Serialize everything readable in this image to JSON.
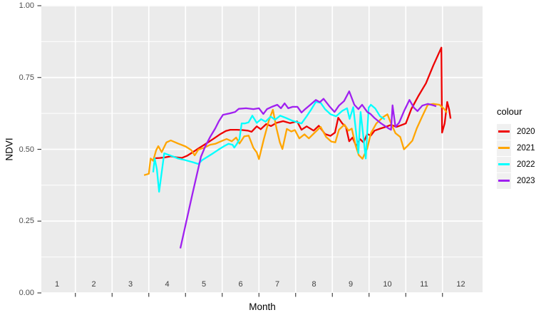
{
  "figure": {
    "panel_background": "#EBEBEB",
    "grid_color": "#FFFFFF",
    "tick_color": "#333333",
    "tick_label_color": "#4d4d4d",
    "background": "#FFFFFF"
  },
  "legend": {
    "title": "colour",
    "items": [
      {
        "label": "2020",
        "color": "#EE0000"
      },
      {
        "label": "2021",
        "color": "#FFA500"
      },
      {
        "label": "2022",
        "color": "#00FFFF"
      },
      {
        "label": "2023",
        "color": "#A020F0"
      }
    ]
  },
  "chart_data": {
    "type": "line",
    "title": "",
    "xlabel": "Month",
    "ylabel": "NDVI",
    "xlim": [
      0.57,
      12.59
    ],
    "ylim": [
      0.0,
      1.0
    ],
    "grid": "on",
    "legend_position": "right",
    "legend_title": "colour",
    "x_ticks": [
      {
        "value": 1,
        "label": "1"
      },
      {
        "value": 2,
        "label": "2"
      },
      {
        "value": 3,
        "label": "3"
      },
      {
        "value": 4,
        "label": "4"
      },
      {
        "value": 5,
        "label": "5"
      },
      {
        "value": 6,
        "label": "6"
      },
      {
        "value": 7,
        "label": "7"
      },
      {
        "value": 8,
        "label": "8"
      },
      {
        "value": 9,
        "label": "9"
      },
      {
        "value": 10,
        "label": "10"
      },
      {
        "value": 11,
        "label": "11"
      },
      {
        "value": 12,
        "label": "12"
      }
    ],
    "y_ticks": [
      {
        "value": 0.0,
        "label": "0.00"
      },
      {
        "value": 0.25,
        "label": "0.25"
      },
      {
        "value": 0.5,
        "label": "0.50"
      },
      {
        "value": 0.75,
        "label": "0.75"
      },
      {
        "value": 1.0,
        "label": "1.00"
      }
    ],
    "series": [
      {
        "name": "2020",
        "color": "#EE0000",
        "points": [
          [
            3.68,
            0.469
          ],
          [
            3.8,
            0.47
          ],
          [
            3.95,
            0.472
          ],
          [
            4.1,
            0.476
          ],
          [
            4.25,
            0.472
          ],
          [
            4.4,
            0.47
          ],
          [
            4.55,
            0.478
          ],
          [
            4.7,
            0.49
          ],
          [
            4.85,
            0.503
          ],
          [
            5.0,
            0.515
          ],
          [
            5.15,
            0.527
          ],
          [
            5.3,
            0.54
          ],
          [
            5.45,
            0.553
          ],
          [
            5.6,
            0.564
          ],
          [
            5.72,
            0.568
          ],
          [
            5.9,
            0.568
          ],
          [
            6.05,
            0.567
          ],
          [
            6.2,
            0.565
          ],
          [
            6.3,
            0.561
          ],
          [
            6.44,
            0.58
          ],
          [
            6.55,
            0.57
          ],
          [
            6.7,
            0.588
          ],
          [
            6.83,
            0.581
          ],
          [
            6.98,
            0.592
          ],
          [
            7.16,
            0.598
          ],
          [
            7.35,
            0.591
          ],
          [
            7.54,
            0.597
          ],
          [
            7.66,
            0.568
          ],
          [
            7.8,
            0.58
          ],
          [
            7.99,
            0.565
          ],
          [
            8.13,
            0.582
          ],
          [
            8.3,
            0.553
          ],
          [
            8.45,
            0.547
          ],
          [
            8.57,
            0.558
          ],
          [
            8.66,
            0.61
          ],
          [
            8.77,
            0.59
          ],
          [
            8.87,
            0.578
          ],
          [
            8.96,
            0.528
          ],
          [
            9.05,
            0.541
          ],
          [
            9.15,
            0.511
          ],
          [
            9.25,
            0.536
          ],
          [
            9.35,
            0.524
          ],
          [
            9.45,
            0.553
          ],
          [
            9.55,
            0.548
          ],
          [
            9.65,
            0.565
          ],
          [
            9.8,
            0.572
          ],
          [
            9.95,
            0.578
          ],
          [
            10.1,
            0.585
          ],
          [
            10.25,
            0.578
          ],
          [
            10.4,
            0.585
          ],
          [
            10.5,
            0.59
          ],
          [
            10.65,
            0.64
          ],
          [
            10.85,
            0.687
          ],
          [
            11.05,
            0.73
          ],
          [
            11.25,
            0.792
          ],
          [
            11.47,
            0.854
          ],
          [
            11.49,
            0.558
          ],
          [
            11.56,
            0.59
          ],
          [
            11.63,
            0.665
          ],
          [
            11.68,
            0.64
          ],
          [
            11.72,
            0.607
          ]
        ]
      },
      {
        "name": "2021",
        "color": "#FFA500",
        "points": [
          [
            3.37,
            0.41
          ],
          [
            3.5,
            0.415
          ],
          [
            3.55,
            0.468
          ],
          [
            3.62,
            0.46
          ],
          [
            3.7,
            0.497
          ],
          [
            3.76,
            0.511
          ],
          [
            3.85,
            0.49
          ],
          [
            3.98,
            0.524
          ],
          [
            4.1,
            0.531
          ],
          [
            4.3,
            0.52
          ],
          [
            4.5,
            0.51
          ],
          [
            4.66,
            0.497
          ],
          [
            4.75,
            0.479
          ],
          [
            4.85,
            0.499
          ],
          [
            5.0,
            0.505
          ],
          [
            5.17,
            0.516
          ],
          [
            5.31,
            0.519
          ],
          [
            5.47,
            0.528
          ],
          [
            5.62,
            0.536
          ],
          [
            5.76,
            0.528
          ],
          [
            5.88,
            0.541
          ],
          [
            5.97,
            0.52
          ],
          [
            6.1,
            0.545
          ],
          [
            6.22,
            0.548
          ],
          [
            6.35,
            0.505
          ],
          [
            6.44,
            0.489
          ],
          [
            6.5,
            0.466
          ],
          [
            6.63,
            0.533
          ],
          [
            6.77,
            0.6
          ],
          [
            6.88,
            0.638
          ],
          [
            6.98,
            0.572
          ],
          [
            7.07,
            0.524
          ],
          [
            7.14,
            0.501
          ],
          [
            7.26,
            0.571
          ],
          [
            7.38,
            0.562
          ],
          [
            7.48,
            0.567
          ],
          [
            7.6,
            0.538
          ],
          [
            7.74,
            0.552
          ],
          [
            7.86,
            0.538
          ],
          [
            8.05,
            0.562
          ],
          [
            8.18,
            0.578
          ],
          [
            8.33,
            0.543
          ],
          [
            8.47,
            0.527
          ],
          [
            8.58,
            0.524
          ],
          [
            8.68,
            0.568
          ],
          [
            8.83,
            0.586
          ],
          [
            8.94,
            0.565
          ],
          [
            9.03,
            0.572
          ],
          [
            9.13,
            0.515
          ],
          [
            9.22,
            0.48
          ],
          [
            9.32,
            0.467
          ],
          [
            9.45,
            0.503
          ],
          [
            9.55,
            0.556
          ],
          [
            9.7,
            0.59
          ],
          [
            9.88,
            0.612
          ],
          [
            10.0,
            0.622
          ],
          [
            10.1,
            0.59
          ],
          [
            10.22,
            0.556
          ],
          [
            10.35,
            0.543
          ],
          [
            10.45,
            0.5
          ],
          [
            10.55,
            0.512
          ],
          [
            10.68,
            0.53
          ],
          [
            10.8,
            0.573
          ],
          [
            10.95,
            0.615
          ],
          [
            11.1,
            0.655
          ],
          [
            11.25,
            0.658
          ],
          [
            11.42,
            0.655
          ],
          [
            11.55,
            0.64
          ],
          [
            11.62,
            0.628
          ]
        ]
      },
      {
        "name": "2022",
        "color": "#00FFFF",
        "points": [
          [
            3.62,
            0.42
          ],
          [
            3.66,
            0.468
          ],
          [
            3.72,
            0.43
          ],
          [
            3.78,
            0.352
          ],
          [
            3.92,
            0.486
          ],
          [
            4.12,
            0.477
          ],
          [
            4.3,
            0.468
          ],
          [
            4.5,
            0.462
          ],
          [
            4.7,
            0.455
          ],
          [
            4.85,
            0.449
          ],
          [
            4.95,
            0.462
          ],
          [
            5.1,
            0.474
          ],
          [
            5.25,
            0.486
          ],
          [
            5.4,
            0.499
          ],
          [
            5.55,
            0.511
          ],
          [
            5.67,
            0.519
          ],
          [
            5.78,
            0.516
          ],
          [
            5.83,
            0.506
          ],
          [
            5.9,
            0.519
          ],
          [
            5.97,
            0.536
          ],
          [
            6.03,
            0.59
          ],
          [
            6.12,
            0.59
          ],
          [
            6.22,
            0.594
          ],
          [
            6.32,
            0.617
          ],
          [
            6.44,
            0.592
          ],
          [
            6.56,
            0.605
          ],
          [
            6.68,
            0.596
          ],
          [
            6.82,
            0.614
          ],
          [
            6.94,
            0.603
          ],
          [
            7.08,
            0.617
          ],
          [
            7.24,
            0.609
          ],
          [
            7.4,
            0.6
          ],
          [
            7.55,
            0.594
          ],
          [
            7.66,
            0.59
          ],
          [
            7.8,
            0.615
          ],
          [
            7.92,
            0.638
          ],
          [
            8.05,
            0.665
          ],
          [
            8.18,
            0.662
          ],
          [
            8.3,
            0.64
          ],
          [
            8.45,
            0.622
          ],
          [
            8.6,
            0.615
          ],
          [
            8.77,
            0.634
          ],
          [
            8.9,
            0.643
          ],
          [
            8.97,
            0.606
          ],
          [
            9.07,
            0.647
          ],
          [
            9.21,
            0.487
          ],
          [
            9.27,
            0.63
          ],
          [
            9.41,
            0.468
          ],
          [
            9.49,
            0.645
          ],
          [
            9.55,
            0.655
          ],
          [
            9.67,
            0.642
          ],
          [
            9.8,
            0.615
          ],
          [
            9.93,
            0.604
          ]
        ]
      },
      {
        "name": "2023",
        "color": "#A020F0",
        "points": [
          [
            4.36,
            0.155
          ],
          [
            4.69,
            0.345
          ],
          [
            4.92,
            0.474
          ],
          [
            5.04,
            0.511
          ],
          [
            5.17,
            0.543
          ],
          [
            5.31,
            0.573
          ],
          [
            5.41,
            0.598
          ],
          [
            5.52,
            0.62
          ],
          [
            5.7,
            0.625
          ],
          [
            5.85,
            0.63
          ],
          [
            5.95,
            0.641
          ],
          [
            6.15,
            0.643
          ],
          [
            6.35,
            0.64
          ],
          [
            6.5,
            0.643
          ],
          [
            6.62,
            0.623
          ],
          [
            6.72,
            0.64
          ],
          [
            6.85,
            0.648
          ],
          [
            7.0,
            0.655
          ],
          [
            7.1,
            0.643
          ],
          [
            7.2,
            0.66
          ],
          [
            7.3,
            0.643
          ],
          [
            7.42,
            0.648
          ],
          [
            7.55,
            0.648
          ],
          [
            7.66,
            0.628
          ],
          [
            7.76,
            0.64
          ],
          [
            7.9,
            0.655
          ],
          [
            8.05,
            0.672
          ],
          [
            8.16,
            0.664
          ],
          [
            8.26,
            0.676
          ],
          [
            8.42,
            0.65
          ],
          [
            8.56,
            0.63
          ],
          [
            8.68,
            0.652
          ],
          [
            8.82,
            0.668
          ],
          [
            8.96,
            0.702
          ],
          [
            9.1,
            0.655
          ],
          [
            9.21,
            0.64
          ],
          [
            9.31,
            0.655
          ],
          [
            9.45,
            0.63
          ],
          [
            9.54,
            0.623
          ],
          [
            9.64,
            0.61
          ],
          [
            9.83,
            0.59
          ],
          [
            10.03,
            0.573
          ],
          [
            10.1,
            0.568
          ],
          [
            10.14,
            0.653
          ],
          [
            10.22,
            0.578
          ],
          [
            10.32,
            0.593
          ],
          [
            10.46,
            0.635
          ],
          [
            10.6,
            0.672
          ],
          [
            10.72,
            0.645
          ],
          [
            10.82,
            0.633
          ],
          [
            10.95,
            0.652
          ],
          [
            11.1,
            0.658
          ],
          [
            11.25,
            0.653
          ],
          [
            11.33,
            0.65
          ]
        ]
      }
    ]
  }
}
